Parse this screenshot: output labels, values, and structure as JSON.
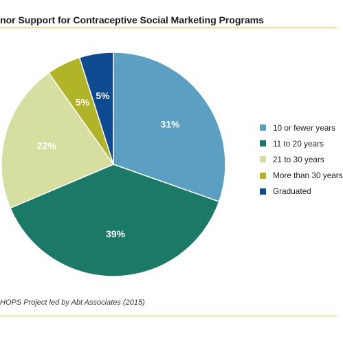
{
  "chart_data": {
    "type": "pie",
    "title": "nor Support for Contraceptive Social Marketing Programs",
    "categories": [
      "10 or fewer years",
      "11 to 20 years",
      "21 to 30 years",
      "More than 30 years",
      "Graduated"
    ],
    "values": [
      31,
      39,
      22,
      5,
      5
    ],
    "value_labels": [
      "31%",
      "39%",
      "22%",
      "5%",
      "5%"
    ],
    "colors": [
      "#5b9fc2",
      "#1a7a65",
      "#d6dea0",
      "#b2b428",
      "#0d4a92"
    ],
    "label_colors": [
      "#ffffff",
      "#ffffff",
      "#1f1f1f",
      "#1f1f1f",
      "#ffffff"
    ],
    "start": "12 o'clock, clockwise",
    "legend_position": "right"
  },
  "source": "HOPS Project led by Abt Associates (2015)"
}
